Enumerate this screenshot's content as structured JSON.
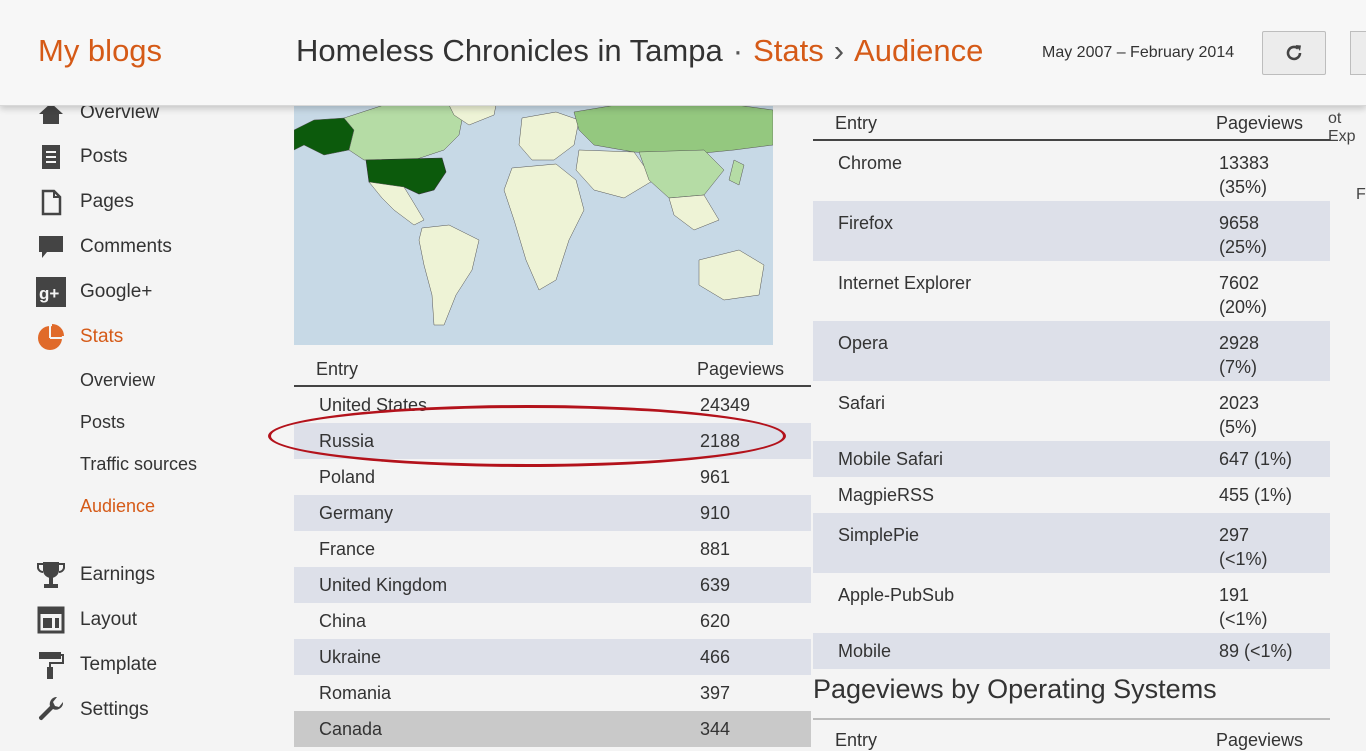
{
  "header": {
    "my_blogs": "My blogs",
    "blog_title": "Homeless Chronicles in Tampa",
    "bullet": "·",
    "stats_link": "Stats",
    "chevron": "›",
    "audience_link": "Audience",
    "date_range": "May 2007 – February 2014",
    "refresh_icon": "refresh-icon"
  },
  "sidebar": {
    "items": [
      {
        "label": "Overview",
        "icon": "home-icon"
      },
      {
        "label": "Posts",
        "icon": "posts-icon"
      },
      {
        "label": "Pages",
        "icon": "pages-icon"
      },
      {
        "label": "Comments",
        "icon": "comments-icon"
      },
      {
        "label": "Google+",
        "icon": "googleplus-icon"
      },
      {
        "label": "Stats",
        "icon": "stats-pie-icon"
      },
      {
        "label": "Earnings",
        "icon": "trophy-icon"
      },
      {
        "label": "Layout",
        "icon": "layout-icon"
      },
      {
        "label": "Template",
        "icon": "paint-roller-icon"
      },
      {
        "label": "Settings",
        "icon": "wrench-icon"
      }
    ],
    "stats_sub": [
      {
        "label": "Overview"
      },
      {
        "label": "Posts"
      },
      {
        "label": "Traffic sources"
      },
      {
        "label": "Audience"
      }
    ]
  },
  "countries": {
    "col_entry": "Entry",
    "col_pageviews": "Pageviews",
    "rows": [
      {
        "entry": "United States",
        "pageviews": "24349"
      },
      {
        "entry": "Russia",
        "pageviews": "2188"
      },
      {
        "entry": "Poland",
        "pageviews": "961"
      },
      {
        "entry": "Germany",
        "pageviews": "910"
      },
      {
        "entry": "France",
        "pageviews": "881"
      },
      {
        "entry": "United Kingdom",
        "pageviews": "639"
      },
      {
        "entry": "China",
        "pageviews": "620"
      },
      {
        "entry": "Ukraine",
        "pageviews": "466"
      },
      {
        "entry": "Romania",
        "pageviews": "397"
      },
      {
        "entry": "Canada",
        "pageviews": "344"
      }
    ]
  },
  "browsers": {
    "col_entry": "Entry",
    "col_pageviews": "Pageviews",
    "rows": [
      {
        "entry": "Chrome",
        "pv1": "13383",
        "pv2": "(35%)"
      },
      {
        "entry": "Firefox",
        "pv1": "9658",
        "pv2": "(25%)"
      },
      {
        "entry": "Internet Explorer",
        "pv1": "7602",
        "pv2": "(20%)"
      },
      {
        "entry": "Opera",
        "pv1": "2928",
        "pv2": "(7%)"
      },
      {
        "entry": "Safari",
        "pv1": "2023",
        "pv2": "(5%)"
      },
      {
        "entry": "Mobile Safari",
        "pv1": "647 (1%)",
        "pv2": ""
      },
      {
        "entry": "MagpieRSS",
        "pv1": "455 (1%)",
        "pv2": ""
      },
      {
        "entry": "SimplePie",
        "pv1": "297",
        "pv2": "(<1%)"
      },
      {
        "entry": "Apple-PubSub",
        "pv1": "191",
        "pv2": "(<1%)"
      },
      {
        "entry": "Mobile",
        "pv1": "89 (<1%)",
        "pv2": ""
      }
    ]
  },
  "os_section": {
    "title": "Pageviews by Operating Systems",
    "col_entry": "Entry",
    "col_pageviews": "Pageviews"
  },
  "cutoff": {
    "right_top": "ot Exp",
    "right_f": "F"
  },
  "colors": {
    "accent": "#d55a17",
    "row_alt": "#dde0e9",
    "highlight_ellipse": "#b3121b",
    "map_dark": "#0c5a0c",
    "map_light": "#b5dca5"
  }
}
